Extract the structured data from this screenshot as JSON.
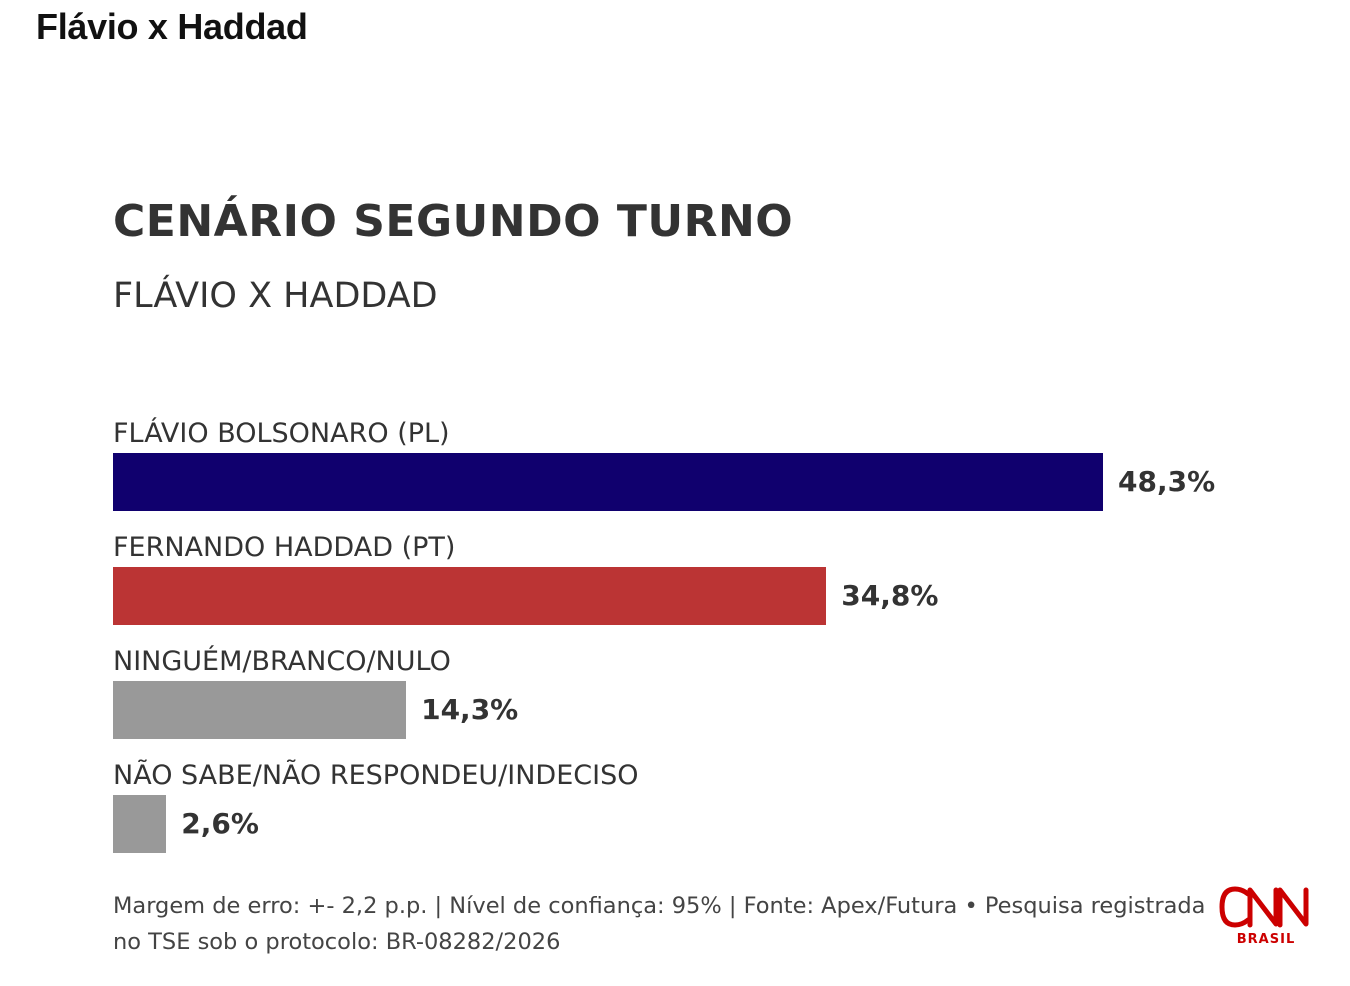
{
  "page_title": "Flávio x Haddad",
  "chart_data": {
    "type": "bar",
    "orientation": "horizontal",
    "title": "CENÁRIO SEGUNDO TURNO",
    "subtitle": "FLÁVIO X HADDAD",
    "categories": [
      "FLÁVIO BOLSONARO (PL)",
      "FERNANDO HADDAD (PT)",
      "NINGUÉM/BRANCO/NULO",
      "NÃO SABE/NÃO RESPONDEU/INDECISO"
    ],
    "values": [
      48.3,
      34.8,
      14.3,
      2.6
    ],
    "value_labels": [
      "48,3%",
      "34,8%",
      "14,3%",
      "2,6%"
    ],
    "colors": [
      "#10006e",
      "#bb3434",
      "#999999",
      "#999999"
    ],
    "unit": "%",
    "grid": false,
    "legend": "none"
  },
  "footnote": "Margem de erro: +- 2,2 p.p. | Nível de confiança: 95% | Fonte: Apex/Futura • Pesquisa registrada no TSE sob o protocolo: BR-08282/2026",
  "logo": {
    "brand": "CNN",
    "sub": "BRASIL",
    "color": "#cc0000"
  }
}
